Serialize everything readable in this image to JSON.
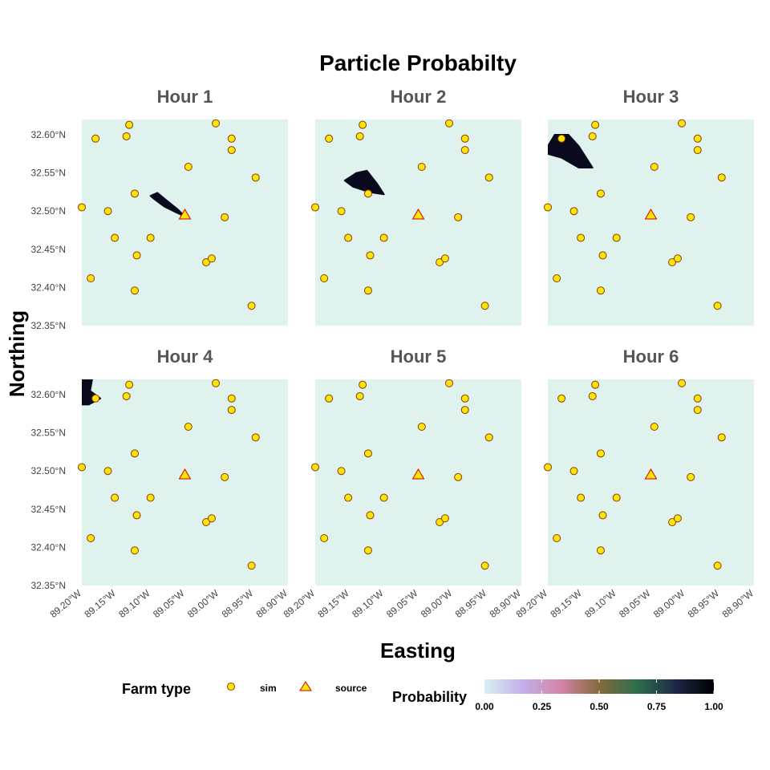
{
  "chart_data": {
    "type": "scatter",
    "title": "Particle Probabilty",
    "xlabel": "Easting",
    "ylabel": "Northing",
    "xlim": [
      -89.2,
      -88.9
    ],
    "ylim": [
      32.35,
      32.62
    ],
    "x_ticks": [
      "89.20°W",
      "89.15°W",
      "89.10°W",
      "89.05°W",
      "89.00°W",
      "88.95°W",
      "88.90°W"
    ],
    "y_ticks": [
      "32.35°N",
      "32.40°N",
      "32.45°N",
      "32.50°N",
      "32.55°N",
      "32.60°N"
    ],
    "panels": [
      "Hour 1",
      "Hour 2",
      "Hour 3",
      "Hour 4",
      "Hour 5",
      "Hour 6"
    ],
    "farms_sim": [
      [
        -89.2,
        32.505
      ],
      [
        -89.18,
        32.595
      ],
      [
        -89.187,
        32.412
      ],
      [
        -89.162,
        32.5
      ],
      [
        -89.152,
        32.465
      ],
      [
        -89.135,
        32.598
      ],
      [
        -89.131,
        32.613
      ],
      [
        -89.123,
        32.523
      ],
      [
        -89.12,
        32.442
      ],
      [
        -89.123,
        32.396
      ],
      [
        -89.1,
        32.465
      ],
      [
        -89.045,
        32.558
      ],
      [
        -89.019,
        32.433
      ],
      [
        -89.011,
        32.438
      ],
      [
        -89.005,
        32.615
      ],
      [
        -88.992,
        32.492
      ],
      [
        -88.982,
        32.595
      ],
      [
        -88.982,
        32.58
      ],
      [
        -88.947,
        32.544
      ],
      [
        -88.953,
        32.376
      ]
    ],
    "farms_source": [
      [
        -89.05,
        32.495
      ]
    ],
    "plumes": [
      {
        "panel": "Hour 1",
        "points": [
          [
            -89.1,
            32.52
          ],
          [
            -89.09,
            32.524
          ],
          [
            -89.078,
            32.515
          ],
          [
            -89.06,
            32.502
          ],
          [
            -89.05,
            32.493
          ],
          [
            -89.062,
            32.498
          ],
          [
            -89.08,
            32.506
          ],
          [
            -89.095,
            32.516
          ]
        ]
      },
      {
        "panel": "Hour 2",
        "points": [
          [
            -89.157,
            32.54
          ],
          [
            -89.14,
            32.55
          ],
          [
            -89.125,
            32.553
          ],
          [
            -89.11,
            32.536
          ],
          [
            -89.1,
            32.522
          ],
          [
            -89.115,
            32.524
          ],
          [
            -89.128,
            32.527
          ],
          [
            -89.145,
            32.532
          ]
        ]
      },
      {
        "panel": "Hour 3",
        "points": [
          [
            -89.2,
            32.585
          ],
          [
            -89.19,
            32.6
          ],
          [
            -89.17,
            32.6
          ],
          [
            -89.155,
            32.585
          ],
          [
            -89.135,
            32.557
          ],
          [
            -89.155,
            32.557
          ],
          [
            -89.18,
            32.57
          ],
          [
            -89.2,
            32.575
          ]
        ]
      },
      {
        "panel": "Hour 4",
        "points": [
          [
            -89.2,
            32.62
          ],
          [
            -89.185,
            32.62
          ],
          [
            -89.188,
            32.605
          ],
          [
            -89.173,
            32.595
          ],
          [
            -89.19,
            32.587
          ],
          [
            -89.2,
            32.587
          ]
        ]
      }
    ],
    "legend": {
      "farm_type_title": "Farm type",
      "farm_types": [
        "sim",
        "source"
      ],
      "probability_title": "Probability",
      "colorbar_ticks": [
        "0.00",
        "0.25",
        "0.50",
        "0.75",
        "1.00"
      ],
      "colorbar_stops": [
        "#d6f0f2",
        "#c2b0e8",
        "#d484a8",
        "#846a3a",
        "#2d6e4c",
        "#1d2848",
        "#000000"
      ]
    },
    "colors": {
      "panel_background": "#dff2ee",
      "farm_fill": "#ffe600",
      "farm_stroke": "#8a3a12",
      "source_stroke": "#cc0000",
      "plume": "#0a0a1e"
    }
  }
}
